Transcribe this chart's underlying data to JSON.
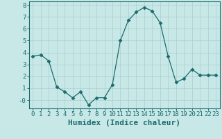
{
  "x": [
    0,
    1,
    2,
    3,
    4,
    5,
    6,
    7,
    8,
    9,
    10,
    11,
    12,
    13,
    14,
    15,
    16,
    17,
    18,
    19,
    20,
    21,
    22,
    23
  ],
  "y": [
    3.7,
    3.8,
    3.3,
    1.1,
    0.7,
    0.2,
    0.7,
    -0.4,
    0.2,
    0.2,
    1.3,
    5.0,
    6.7,
    7.4,
    7.8,
    7.5,
    6.5,
    3.7,
    1.5,
    1.8,
    2.6,
    2.1,
    2.1,
    2.1
  ],
  "xlabel": "Humidex (Indice chaleur)",
  "ylim": [
    -0.7,
    8.3
  ],
  "xlim": [
    -0.5,
    23.5
  ],
  "yticks": [
    0,
    1,
    2,
    3,
    4,
    5,
    6,
    7,
    8
  ],
  "ytick_labels": [
    "-0",
    "1",
    "2",
    "3",
    "4",
    "5",
    "6",
    "7",
    "8"
  ],
  "xticks": [
    0,
    1,
    2,
    3,
    4,
    5,
    6,
    7,
    8,
    9,
    10,
    11,
    12,
    13,
    14,
    15,
    16,
    17,
    18,
    19,
    20,
    21,
    22,
    23
  ],
  "line_color": "#1a6b6b",
  "marker": "D",
  "marker_size": 2.5,
  "bg_color": "#c8e8e8",
  "grid_color": "#aacece",
  "xlabel_fontsize": 8,
  "tick_fontsize": 6.5
}
